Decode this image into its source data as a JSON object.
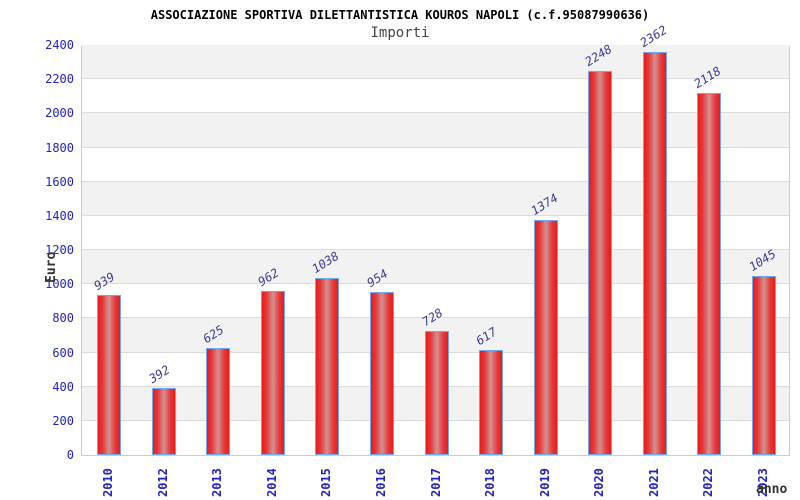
{
  "chart_data": {
    "type": "bar",
    "title": "ASSOCIAZIONE SPORTIVA DILETTANTISTICA KOUROS NAPOLI (c.f.95087990636)",
    "subtitle": "Importi",
    "xlabel": "anno",
    "ylabel": "Euro",
    "categories": [
      "2010",
      "2012",
      "2013",
      "2014",
      "2015",
      "2016",
      "2017",
      "2018",
      "2019",
      "2020",
      "2021",
      "2022",
      "2023"
    ],
    "values": [
      939,
      392,
      625,
      962,
      1038,
      954,
      728,
      617,
      1374,
      2248,
      2362,
      2118,
      1045
    ],
    "ylim": [
      0,
      2400
    ],
    "ytick_step": 200,
    "grid": "horizontal-gridlines-with-alternating-bands",
    "legend": "none"
  },
  "colors": {
    "bar_edge": "#ec1a1a",
    "bar_center": "#d49090",
    "bar_border": "#6fa8f5",
    "tick_label": "#2222cc",
    "value_label": "#3a3a9c",
    "band_gray": "#f2f2f2",
    "gridline": "#dcdcdc",
    "plot_border": "#cccccc",
    "title": "#000000",
    "subtitle": "#444444",
    "axis_title": "#333333"
  }
}
